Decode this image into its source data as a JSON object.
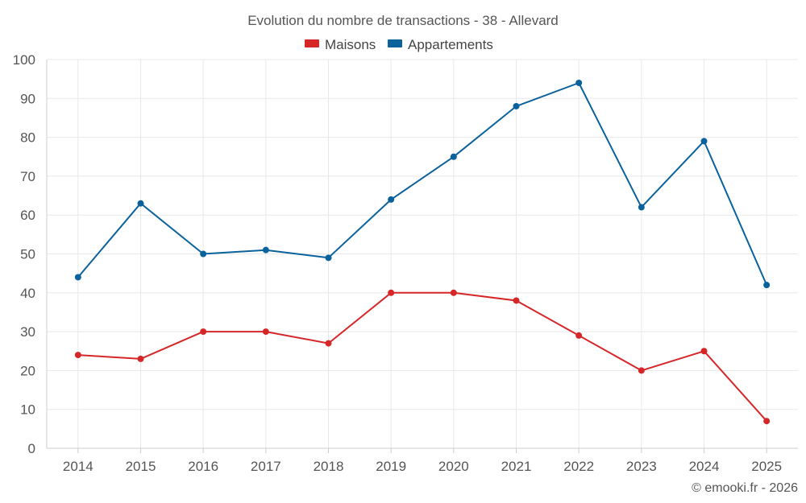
{
  "chart_data": {
    "type": "line",
    "title": "Evolution du nombre de transactions - 38 - Allevard",
    "xlabel": "",
    "ylabel": "",
    "categories": [
      "2014",
      "2015",
      "2016",
      "2017",
      "2018",
      "2019",
      "2020",
      "2021",
      "2022",
      "2023",
      "2024",
      "2025"
    ],
    "ylim": [
      0,
      100
    ],
    "yticks": [
      0,
      10,
      20,
      30,
      40,
      50,
      60,
      70,
      80,
      90,
      100
    ],
    "grid": true,
    "legend_position": "top-center",
    "series": [
      {
        "name": "Maisons",
        "color": "#d62728",
        "values": [
          24,
          23,
          30,
          30,
          27,
          40,
          40,
          38,
          29,
          20,
          25,
          7
        ]
      },
      {
        "name": "Appartements",
        "color": "#0a629c",
        "values": [
          44,
          63,
          50,
          51,
          49,
          64,
          75,
          88,
          94,
          62,
          79,
          42
        ]
      }
    ]
  },
  "credit": "© emooki.fr - 2026"
}
